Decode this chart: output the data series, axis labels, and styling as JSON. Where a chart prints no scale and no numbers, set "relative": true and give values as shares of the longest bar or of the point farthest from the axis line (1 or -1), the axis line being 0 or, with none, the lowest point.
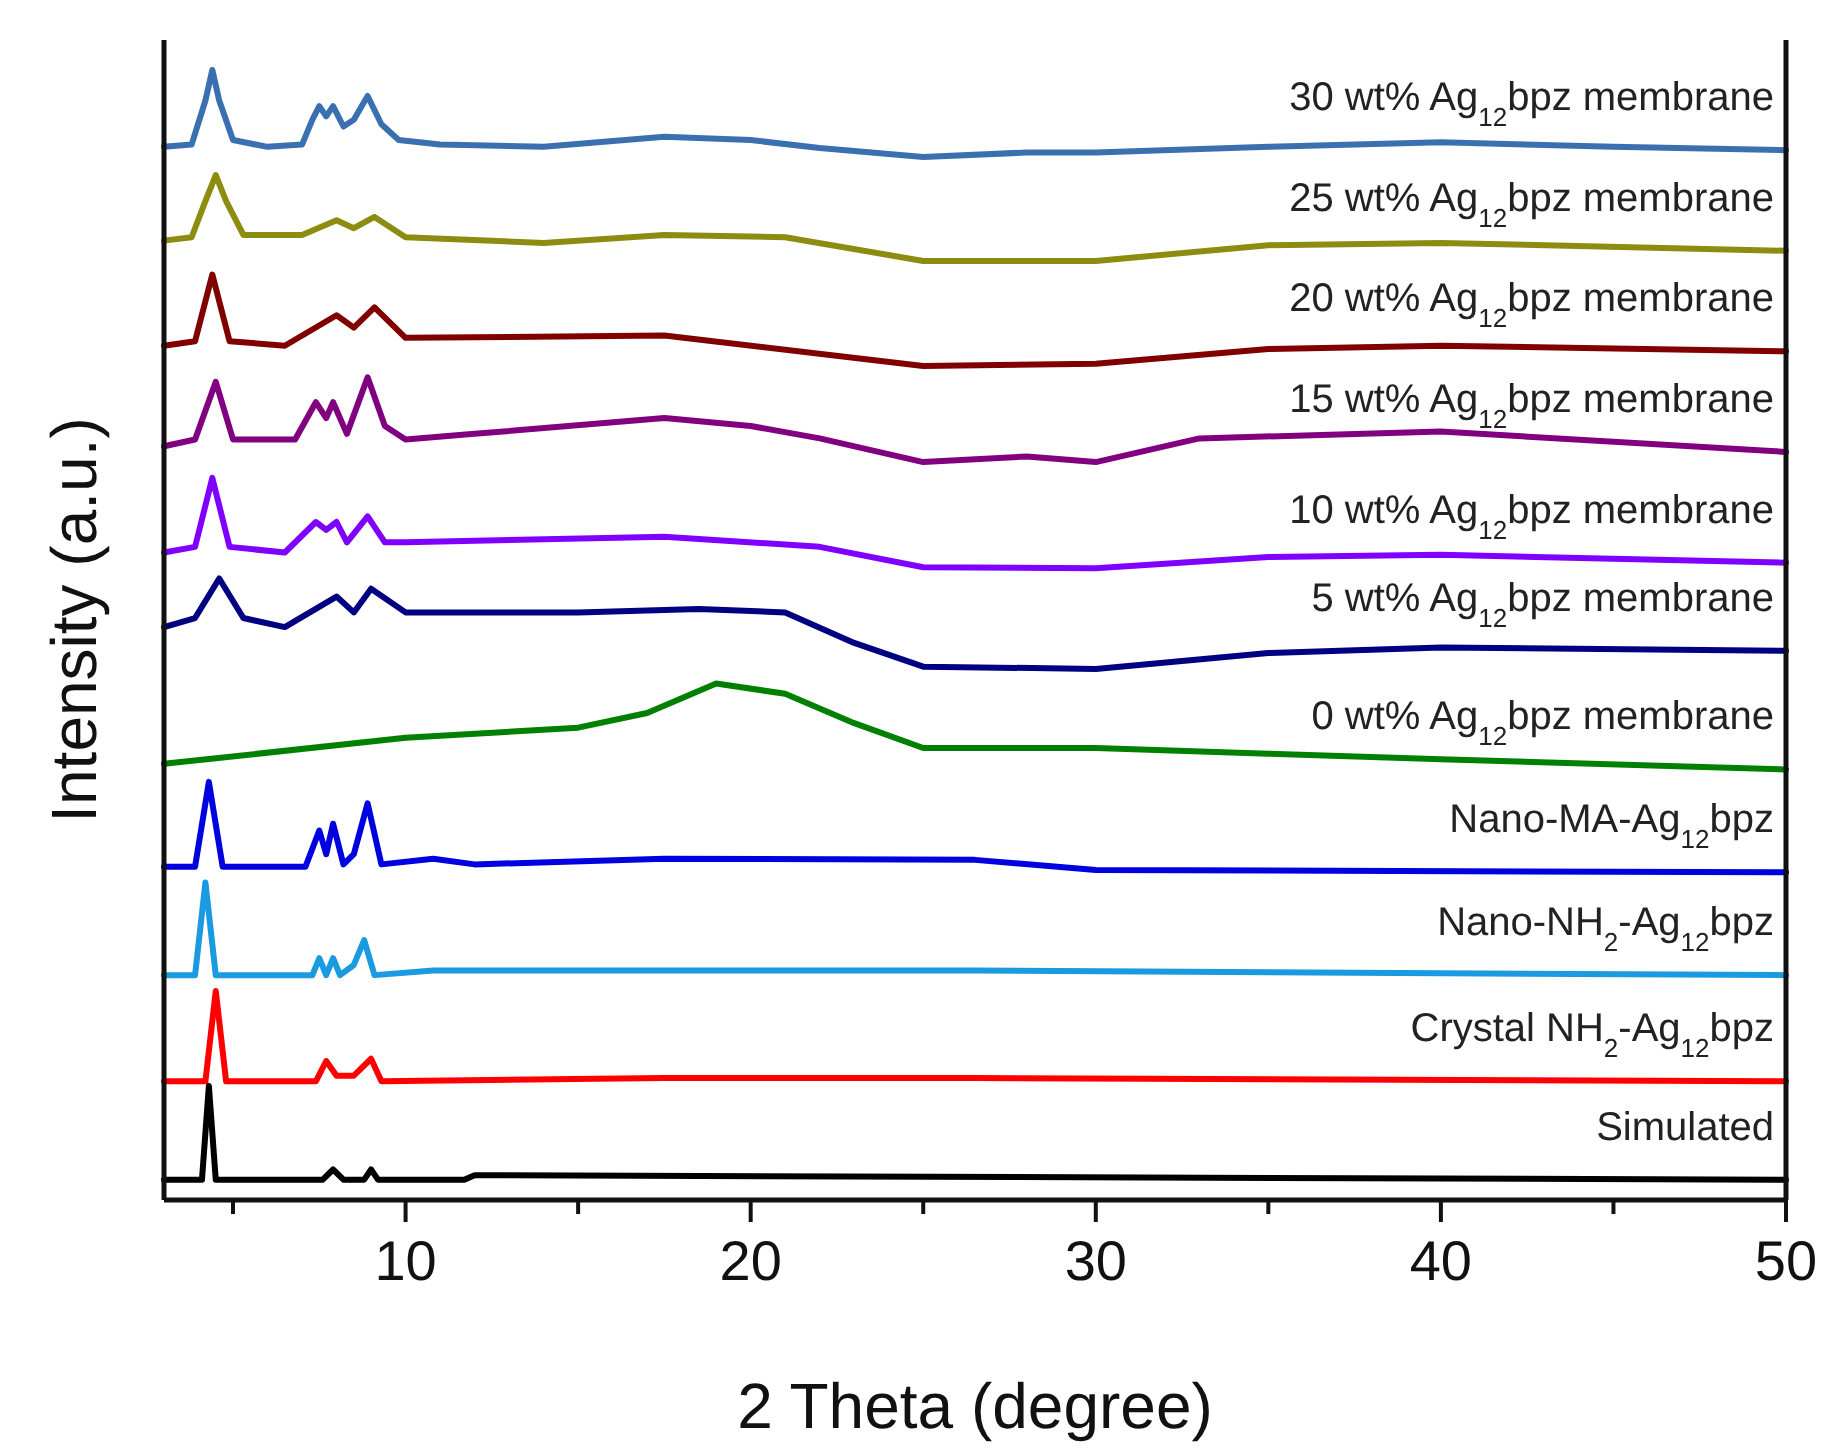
{
  "chart_data": {
    "type": "line",
    "relative": true,
    "xlabel": "2 Theta (degree)",
    "ylabel": "Intensity (a.u.)",
    "xlim": [
      3,
      50
    ],
    "xticks": [
      {
        "value": 5,
        "label": null
      },
      10,
      {
        "value": 15,
        "label": null
      },
      20,
      {
        "value": 25,
        "label": null
      },
      30,
      {
        "value": 35,
        "label": null
      },
      40,
      {
        "value": 45,
        "label": null
      },
      50
    ],
    "series": [
      {
        "name": "Simulated",
        "color": "#000000",
        "x": [
          3,
          4.1,
          4.3,
          4.5,
          7.6,
          7.9,
          8.2,
          8.8,
          9,
          9.2,
          11.7,
          12,
          50
        ],
        "values": [
          0.018,
          0.018,
          0.101,
          0.018,
          0.018,
          0.027,
          0.018,
          0.018,
          0.027,
          0.018,
          0.018,
          0.022,
          0.018
        ]
      },
      {
        "name": "Crystal NH$_{2}$-Ag$_{12}$bpz",
        "color": "#ff0000",
        "x": [
          3,
          4.2,
          4.5,
          4.8,
          7.4,
          7.7,
          8,
          8.5,
          9,
          9.3,
          17.5,
          26.5,
          50
        ],
        "values": [
          0.105,
          0.105,
          0.185,
          0.105,
          0.105,
          0.123,
          0.11,
          0.11,
          0.125,
          0.105,
          0.108,
          0.108,
          0.105
        ]
      },
      {
        "name": "Nano-NH$_{2}$-Ag$_{12}$bpz",
        "color": "#1a9ae0",
        "x": [
          3,
          3.9,
          4.2,
          4.5,
          7.3,
          7.5,
          7.7,
          7.9,
          8.1,
          8.5,
          8.8,
          9.1,
          10.8,
          17.5,
          26.5,
          50
        ],
        "values": [
          0.199,
          0.199,
          0.281,
          0.199,
          0.199,
          0.214,
          0.199,
          0.214,
          0.199,
          0.208,
          0.23,
          0.199,
          0.203,
          0.203,
          0.203,
          0.199
        ]
      },
      {
        "name": "Nano-MA-Ag$_{12}$bpz",
        "color": "#0000e0",
        "x": [
          3,
          3.9,
          4.3,
          4.7,
          7.1,
          7.5,
          7.7,
          7.9,
          8.2,
          8.5,
          8.9,
          9.3,
          10.8,
          12,
          17.5,
          26.5,
          30,
          50
        ],
        "values": [
          0.295,
          0.295,
          0.37,
          0.295,
          0.295,
          0.327,
          0.306,
          0.333,
          0.297,
          0.306,
          0.351,
          0.297,
          0.302,
          0.297,
          0.302,
          0.301,
          0.292,
          0.29
        ]
      },
      {
        "name": "0 wt% Ag$_{12}$bpz membrane",
        "color": "#008000",
        "x": [
          3,
          10,
          15,
          17,
          19,
          21,
          23,
          25,
          30,
          35,
          40,
          50
        ],
        "values": [
          0.386,
          0.409,
          0.418,
          0.431,
          0.457,
          0.448,
          0.422,
          0.4,
          0.4,
          0.395,
          0.39,
          0.381
        ]
      },
      {
        "name": "5 wt% Ag$_{12}$bpz membrane",
        "color": "#000080",
        "x": [
          3,
          3.9,
          4.6,
          5.3,
          6.5,
          8,
          8.5,
          9,
          10,
          15,
          18.5,
          21,
          23,
          25,
          30,
          35,
          40,
          50
        ],
        "values": [
          0.507,
          0.515,
          0.55,
          0.515,
          0.507,
          0.534,
          0.52,
          0.541,
          0.52,
          0.52,
          0.523,
          0.52,
          0.493,
          0.472,
          0.47,
          0.484,
          0.489,
          0.486
        ]
      },
      {
        "name": "10 wt% Ag$_{12}$bpz membrane",
        "color": "#8000ff",
        "x": [
          3,
          3.9,
          4.4,
          4.9,
          6.5,
          7.4,
          7.7,
          8,
          8.3,
          8.9,
          9.4,
          10,
          17.5,
          22,
          25,
          30,
          35,
          40,
          50
        ],
        "values": [
          0.573,
          0.578,
          0.639,
          0.578,
          0.573,
          0.6,
          0.593,
          0.6,
          0.582,
          0.605,
          0.582,
          0.582,
          0.587,
          0.578,
          0.56,
          0.559,
          0.569,
          0.571,
          0.564
        ]
      },
      {
        "name": "15 wt% Ag$_{12}$bpz membrane",
        "color": "#800080",
        "x": [
          3,
          3.9,
          4.5,
          5,
          6.8,
          7.4,
          7.7,
          7.9,
          8.3,
          8.9,
          9.4,
          10,
          12,
          17.5,
          20,
          22,
          25,
          28,
          30,
          33,
          40,
          50
        ],
        "values": [
          0.667,
          0.673,
          0.724,
          0.673,
          0.673,
          0.706,
          0.692,
          0.706,
          0.678,
          0.728,
          0.685,
          0.673,
          0.678,
          0.692,
          0.685,
          0.674,
          0.653,
          0.658,
          0.653,
          0.674,
          0.68,
          0.662
        ]
      },
      {
        "name": "20 wt% Ag$_{12}$bpz membrane",
        "color": "#800000",
        "x": [
          3,
          3.9,
          4.4,
          4.9,
          6.5,
          8,
          8.5,
          9.1,
          10,
          17.5,
          25,
          30,
          35,
          40,
          50
        ],
        "values": [
          0.756,
          0.76,
          0.819,
          0.76,
          0.756,
          0.783,
          0.772,
          0.79,
          0.763,
          0.765,
          0.738,
          0.74,
          0.753,
          0.756,
          0.751
        ]
      },
      {
        "name": "25 wt% Ag$_{12}$bpz membrane",
        "color": "#8c8c10",
        "x": [
          3,
          3.8,
          4.2,
          4.5,
          4.8,
          5.3,
          7,
          8,
          8.5,
          9.1,
          10,
          14,
          17.5,
          21,
          25,
          30,
          35,
          40,
          50
        ],
        "values": [
          0.849,
          0.852,
          0.884,
          0.907,
          0.884,
          0.854,
          0.854,
          0.867,
          0.86,
          0.87,
          0.852,
          0.847,
          0.854,
          0.852,
          0.831,
          0.831,
          0.845,
          0.847,
          0.84
        ]
      },
      {
        "name": "30 wt% Ag$_{12}$bpz membrane",
        "color": "#3a70b0",
        "x": [
          3,
          3.8,
          4.2,
          4.4,
          4.6,
          5,
          6,
          7,
          7.3,
          7.5,
          7.7,
          7.9,
          8.2,
          8.5,
          8.9,
          9.3,
          9.8,
          11,
          14,
          17.5,
          20,
          22,
          25,
          28,
          30,
          35,
          40,
          45,
          50
        ],
        "values": [
          0.932,
          0.934,
          0.973,
          1,
          0.973,
          0.938,
          0.932,
          0.934,
          0.956,
          0.968,
          0.959,
          0.968,
          0.95,
          0.956,
          0.977,
          0.952,
          0.938,
          0.934,
          0.932,
          0.941,
          0.938,
          0.931,
          0.923,
          0.927,
          0.927,
          0.932,
          0.936,
          0.932,
          0.929
        ]
      }
    ]
  }
}
